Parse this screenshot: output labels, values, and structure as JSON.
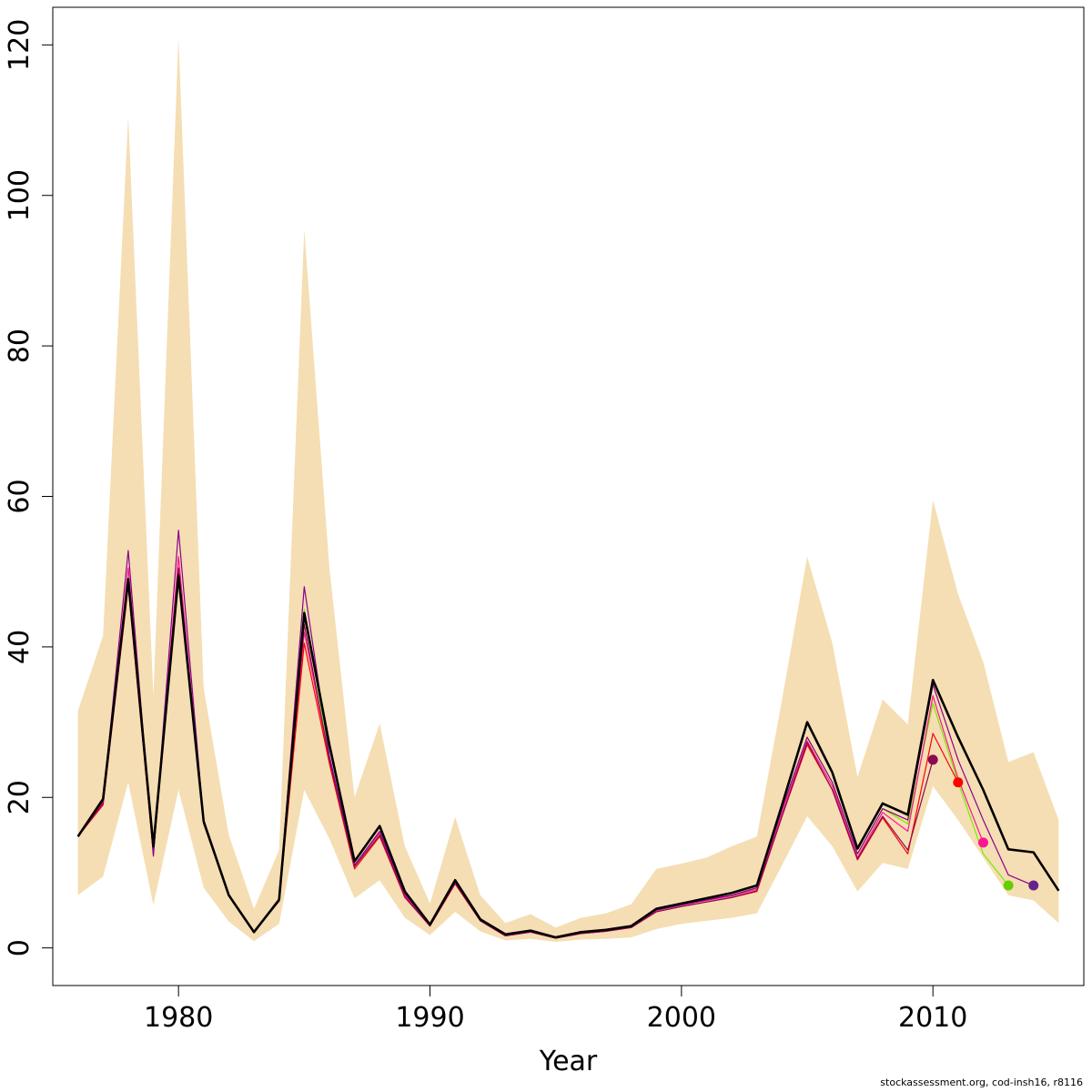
{
  "chart_data": {
    "type": "line",
    "title": "",
    "xlabel": "Year",
    "ylabel": "",
    "xlim": [
      1975,
      2016
    ],
    "ylim": [
      -5,
      125
    ],
    "xticks": [
      1980,
      1990,
      2000,
      2010
    ],
    "yticks": [
      0,
      20,
      40,
      60,
      80,
      100,
      120
    ],
    "grid": false,
    "band_color": "#f5deb3",
    "confidence_band": {
      "x": [
        1976,
        1977,
        1978,
        1979,
        1980,
        1981,
        1982,
        1983,
        1984,
        1985,
        1986,
        1987,
        1988,
        1989,
        1990,
        1991,
        1992,
        1993,
        1994,
        1995,
        1996,
        1997,
        1998,
        1999,
        2000,
        2001,
        2002,
        2003,
        2004,
        2005,
        2006,
        2007,
        2008,
        2009,
        2010,
        2011,
        2012,
        2013,
        2014,
        2015
      ],
      "lower": [
        7.0,
        9.5,
        22.0,
        5.7,
        21.0,
        8.0,
        3.5,
        0.9,
        3.2,
        21.0,
        14.5,
        6.6,
        9.0,
        4.0,
        1.7,
        4.8,
        2.2,
        1.0,
        1.2,
        0.8,
        1.1,
        1.2,
        1.4,
        2.5,
        3.2,
        3.6,
        4.0,
        4.6,
        11.0,
        17.5,
        13.5,
        7.5,
        11.3,
        10.5,
        21.5,
        17.0,
        12.0,
        7.0,
        6.3,
        3.3
      ],
      "upper": [
        31.5,
        41.5,
        110.5,
        33.5,
        121.0,
        34.5,
        15.0,
        5.2,
        13.0,
        95.5,
        50.5,
        20.0,
        29.8,
        13.5,
        5.9,
        17.4,
        7.0,
        3.3,
        4.5,
        2.7,
        4.0,
        4.6,
        5.8,
        10.5,
        11.2,
        12.0,
        13.5,
        14.8,
        33.0,
        52.0,
        40.5,
        22.7,
        33.0,
        29.7,
        59.5,
        47.0,
        38.0,
        24.7,
        26.0,
        17.0
      ]
    },
    "series": [
      {
        "color": "#000000",
        "width": 2.6,
        "x": [
          1976,
          1977,
          1978,
          1979,
          1980,
          1981,
          1982,
          1983,
          1984,
          1985,
          1986,
          1987,
          1988,
          1989,
          1990,
          1991,
          1992,
          1993,
          1994,
          1995,
          1996,
          1997,
          1998,
          1999,
          2000,
          2001,
          2002,
          2003,
          2004,
          2005,
          2006,
          2007,
          2008,
          2009,
          2010,
          2011,
          2012,
          2013,
          2014,
          2015
        ],
        "values": [
          14.8,
          19.8,
          49.0,
          13.5,
          49.5,
          16.8,
          7.0,
          2.1,
          6.4,
          44.5,
          27.0,
          11.5,
          16.2,
          7.5,
          3.1,
          9.0,
          3.8,
          1.8,
          2.3,
          1.4,
          2.1,
          2.4,
          2.9,
          5.2,
          5.9,
          6.6,
          7.3,
          8.3,
          19.0,
          30.0,
          23.3,
          13.2,
          19.2,
          17.7,
          35.6,
          28.0,
          21.0,
          13.1,
          12.7,
          7.6
        ]
      },
      {
        "color": "#76ee00",
        "width": 1.2,
        "x": [
          1976,
          1977,
          1978,
          1979,
          1980,
          1981,
          1982,
          1983,
          1984,
          1985,
          1986,
          1987,
          1988,
          1989,
          1990,
          1991,
          1992,
          1993,
          1994,
          1995,
          1996,
          1997,
          1998,
          1999,
          2000,
          2001,
          2002,
          2003,
          2004,
          2005,
          2006,
          2007,
          2008,
          2009,
          2010,
          2011,
          2012,
          2013
        ],
        "values": [
          14.8,
          19.5,
          48.5,
          13.0,
          49.0,
          16.6,
          7.0,
          2.1,
          6.3,
          45.0,
          25.5,
          11.0,
          15.5,
          7.2,
          3.0,
          8.8,
          3.7,
          1.7,
          2.2,
          1.3,
          2.0,
          2.3,
          2.8,
          5.0,
          5.7,
          6.4,
          7.0,
          8.0,
          18.5,
          28.0,
          22.0,
          12.5,
          18.5,
          16.5,
          32.5,
          22.0,
          12.5,
          8.3
        ]
      },
      {
        "color": "#ff1493",
        "width": 1.2,
        "x": [
          1976,
          1977,
          1978,
          1979,
          1980,
          1981,
          1982,
          1983,
          1984,
          1985,
          1986,
          1987,
          1988,
          1989,
          1990,
          1991,
          1992,
          1993,
          1994,
          1995,
          1996,
          1997,
          1998,
          1999,
          2000,
          2001,
          2002,
          2003,
          2004,
          2005,
          2006,
          2007,
          2008,
          2009,
          2010,
          2011,
          2012
        ],
        "values": [
          14.8,
          19.3,
          50.5,
          12.8,
          52.0,
          16.6,
          7.0,
          2.1,
          6.3,
          42.0,
          25.0,
          11.0,
          15.3,
          7.0,
          3.0,
          8.7,
          3.7,
          1.7,
          2.2,
          1.3,
          2.0,
          2.3,
          2.8,
          5.0,
          5.7,
          6.3,
          6.9,
          7.8,
          18.0,
          27.5,
          21.5,
          12.0,
          18.0,
          15.5,
          33.5,
          22.5,
          14.0
        ]
      },
      {
        "color": "#ff0000",
        "width": 1.2,
        "x": [
          1976,
          1977,
          1978,
          1979,
          1980,
          1981,
          1982,
          1983,
          1984,
          1985,
          1986,
          1987,
          1988,
          1989,
          1990,
          1991,
          1992,
          1993,
          1994,
          1995,
          1996,
          1997,
          1998,
          1999,
          2000,
          2001,
          2002,
          2003,
          2004,
          2005,
          2006,
          2007,
          2008,
          2009,
          2010,
          2011
        ],
        "values": [
          14.8,
          19.0,
          48.0,
          12.5,
          50.0,
          16.5,
          7.0,
          2.1,
          6.2,
          40.5,
          24.5,
          10.5,
          14.8,
          6.7,
          2.9,
          8.5,
          3.6,
          1.6,
          2.1,
          1.3,
          1.9,
          2.2,
          2.7,
          4.8,
          5.5,
          6.1,
          6.7,
          7.5,
          17.5,
          27.0,
          21.0,
          11.7,
          17.3,
          12.5,
          28.5,
          22.0
        ]
      },
      {
        "color": "#8b0a50",
        "width": 1.2,
        "x": [
          1976,
          1977,
          1978,
          1979,
          1980,
          1981,
          1982,
          1983,
          1984,
          1985,
          1986,
          1987,
          1988,
          1989,
          1990,
          1991,
          1992,
          1993,
          1994,
          1995,
          1996,
          1997,
          1998,
          1999,
          2000,
          2001,
          2002,
          2003,
          2004,
          2005,
          2006,
          2007,
          2008,
          2009,
          2010
        ],
        "values": [
          14.8,
          19.2,
          49.0,
          12.7,
          50.5,
          16.5,
          7.0,
          2.1,
          6.2,
          43.0,
          25.0,
          10.8,
          15.0,
          6.8,
          2.9,
          8.6,
          3.6,
          1.6,
          2.1,
          1.3,
          1.9,
          2.2,
          2.7,
          4.8,
          5.5,
          6.1,
          6.7,
          7.6,
          17.5,
          27.3,
          21.0,
          11.8,
          17.5,
          13.0,
          25.0
        ]
      },
      {
        "color": "#8b008b",
        "width": 1.2,
        "x": [
          1976,
          1977,
          1978,
          1979,
          1980,
          1981,
          1982,
          1983,
          1984,
          1985,
          1986,
          1987,
          1988,
          1989,
          1990,
          1991,
          1992,
          1993,
          1994,
          1995,
          1996,
          1997,
          1998,
          1999,
          2000,
          2001,
          2002,
          2003,
          2004,
          2005,
          2006,
          2007,
          2008,
          2009,
          2010,
          2011,
          2012,
          2013,
          2014
        ],
        "values": [
          14.9,
          19.5,
          52.8,
          12.2,
          55.5,
          16.8,
          7.0,
          2.1,
          6.4,
          48.0,
          25.5,
          11.0,
          15.5,
          7.2,
          3.0,
          8.8,
          3.7,
          1.7,
          2.2,
          1.3,
          2.0,
          2.3,
          2.8,
          5.0,
          5.7,
          6.4,
          7.0,
          8.0,
          18.5,
          28.0,
          22.0,
          12.5,
          18.5,
          17.0,
          35.0,
          25.0,
          17.0,
          9.7,
          8.3
        ]
      }
    ],
    "endpoints": [
      {
        "x": 2010,
        "y": 25.0,
        "color": "#8b0a50"
      },
      {
        "x": 2011,
        "y": 22.0,
        "color": "#ff0000"
      },
      {
        "x": 2012,
        "y": 14.0,
        "color": "#ff1493"
      },
      {
        "x": 2013,
        "y": 8.3,
        "color": "#66cd00"
      },
      {
        "x": 2014,
        "y": 8.3,
        "color": "#68228b"
      }
    ]
  },
  "footer": {
    "credit": "stockassessment.org, cod-insh16, r8116"
  }
}
